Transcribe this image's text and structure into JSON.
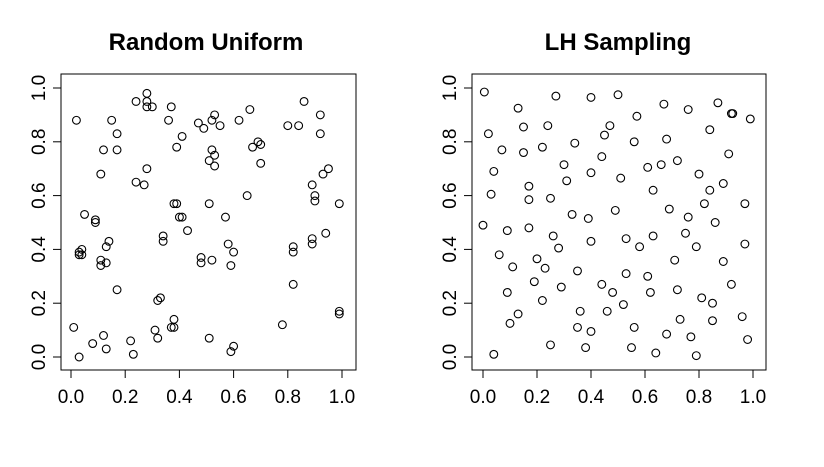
{
  "chart_data": [
    {
      "type": "scatter",
      "title": "Random Uniform",
      "xlabel": "",
      "ylabel": "",
      "xlim": [
        0,
        1
      ],
      "ylim": [
        0,
        1
      ],
      "xticks": [
        "0.0",
        "0.2",
        "0.4",
        "0.6",
        "0.8",
        "1.0"
      ],
      "yticks": [
        "0.0",
        "0.2",
        "0.4",
        "0.6",
        "0.8",
        "1.0"
      ],
      "grid": false,
      "marker": "open-circle",
      "points": [
        [
          0.02,
          0.88
        ],
        [
          0.12,
          0.77
        ],
        [
          0.15,
          0.88
        ],
        [
          0.17,
          0.83
        ],
        [
          0.17,
          0.77
        ],
        [
          0.24,
          0.95
        ],
        [
          0.28,
          0.98
        ],
        [
          0.28,
          0.95
        ],
        [
          0.28,
          0.93
        ],
        [
          0.3,
          0.93
        ],
        [
          0.37,
          0.93
        ],
        [
          0.36,
          0.88
        ],
        [
          0.39,
          0.78
        ],
        [
          0.41,
          0.82
        ],
        [
          0.47,
          0.87
        ],
        [
          0.49,
          0.85
        ],
        [
          0.52,
          0.88
        ],
        [
          0.53,
          0.9
        ],
        [
          0.55,
          0.86
        ],
        [
          0.62,
          0.88
        ],
        [
          0.66,
          0.92
        ],
        [
          0.67,
          0.78
        ],
        [
          0.69,
          0.8
        ],
        [
          0.7,
          0.79
        ],
        [
          0.7,
          0.72
        ],
        [
          0.8,
          0.86
        ],
        [
          0.86,
          0.95
        ],
        [
          0.84,
          0.86
        ],
        [
          0.92,
          0.9
        ],
        [
          0.92,
          0.83
        ],
        [
          0.51,
          0.73
        ],
        [
          0.52,
          0.77
        ],
        [
          0.53,
          0.75
        ],
        [
          0.53,
          0.71
        ],
        [
          0.28,
          0.7
        ],
        [
          0.24,
          0.65
        ],
        [
          0.27,
          0.64
        ],
        [
          0.65,
          0.6
        ],
        [
          0.89,
          0.64
        ],
        [
          0.9,
          0.6
        ],
        [
          0.9,
          0.58
        ],
        [
          0.93,
          0.68
        ],
        [
          0.95,
          0.7
        ],
        [
          0.99,
          0.57
        ],
        [
          0.11,
          0.68
        ],
        [
          0.05,
          0.53
        ],
        [
          0.09,
          0.51
        ],
        [
          0.09,
          0.5
        ],
        [
          0.38,
          0.57
        ],
        [
          0.39,
          0.57
        ],
        [
          0.4,
          0.52
        ],
        [
          0.41,
          0.52
        ],
        [
          0.43,
          0.47
        ],
        [
          0.51,
          0.57
        ],
        [
          0.57,
          0.52
        ],
        [
          0.03,
          0.39
        ],
        [
          0.04,
          0.4
        ],
        [
          0.03,
          0.38
        ],
        [
          0.04,
          0.38
        ],
        [
          0.13,
          0.41
        ],
        [
          0.14,
          0.43
        ],
        [
          0.11,
          0.36
        ],
        [
          0.13,
          0.35
        ],
        [
          0.11,
          0.34
        ],
        [
          0.34,
          0.45
        ],
        [
          0.34,
          0.43
        ],
        [
          0.48,
          0.37
        ],
        [
          0.48,
          0.35
        ],
        [
          0.52,
          0.36
        ],
        [
          0.58,
          0.42
        ],
        [
          0.59,
          0.34
        ],
        [
          0.6,
          0.39
        ],
        [
          0.82,
          0.41
        ],
        [
          0.82,
          0.39
        ],
        [
          0.89,
          0.44
        ],
        [
          0.89,
          0.42
        ],
        [
          0.94,
          0.46
        ],
        [
          0.17,
          0.25
        ],
        [
          0.33,
          0.22
        ],
        [
          0.32,
          0.21
        ],
        [
          0.82,
          0.27
        ],
        [
          0.01,
          0.11
        ],
        [
          0.03,
          0.0
        ],
        [
          0.08,
          0.05
        ],
        [
          0.12,
          0.08
        ],
        [
          0.13,
          0.03
        ],
        [
          0.22,
          0.06
        ],
        [
          0.23,
          0.01
        ],
        [
          0.31,
          0.1
        ],
        [
          0.32,
          0.07
        ],
        [
          0.37,
          0.11
        ],
        [
          0.38,
          0.11
        ],
        [
          0.38,
          0.14
        ],
        [
          0.51,
          0.07
        ],
        [
          0.59,
          0.02
        ],
        [
          0.6,
          0.04
        ],
        [
          0.78,
          0.12
        ],
        [
          0.99,
          0.17
        ],
        [
          0.99,
          0.16
        ]
      ]
    },
    {
      "type": "scatter",
      "title": "LH Sampling",
      "xlabel": "",
      "ylabel": "",
      "xlim": [
        0,
        1
      ],
      "ylim": [
        0,
        1
      ],
      "xticks": [
        "0.0",
        "0.2",
        "0.4",
        "0.6",
        "0.8",
        "1.0"
      ],
      "yticks": [
        "0.0",
        "0.2",
        "0.4",
        "0.6",
        "0.8",
        "1.0"
      ],
      "grid": false,
      "marker": "open-circle",
      "points": [
        [
          0.005,
          0.985
        ],
        [
          0.13,
          0.925
        ],
        [
          0.27,
          0.97
        ],
        [
          0.4,
          0.965
        ],
        [
          0.5,
          0.975
        ],
        [
          0.67,
          0.94
        ],
        [
          0.76,
          0.92
        ],
        [
          0.87,
          0.945
        ],
        [
          0.92,
          0.905
        ],
        [
          0.925,
          0.905
        ],
        [
          0.99,
          0.885
        ],
        [
          0.02,
          0.83
        ],
        [
          0.15,
          0.855
        ],
        [
          0.24,
          0.86
        ],
        [
          0.45,
          0.825
        ],
        [
          0.47,
          0.86
        ],
        [
          0.57,
          0.895
        ],
        [
          0.84,
          0.845
        ],
        [
          0.07,
          0.77
        ],
        [
          0.15,
          0.76
        ],
        [
          0.22,
          0.78
        ],
        [
          0.34,
          0.795
        ],
        [
          0.44,
          0.745
        ],
        [
          0.56,
          0.8
        ],
        [
          0.68,
          0.81
        ],
        [
          0.72,
          0.73
        ],
        [
          0.91,
          0.755
        ],
        [
          0.04,
          0.69
        ],
        [
          0.3,
          0.715
        ],
        [
          0.31,
          0.655
        ],
        [
          0.4,
          0.685
        ],
        [
          0.51,
          0.665
        ],
        [
          0.61,
          0.705
        ],
        [
          0.66,
          0.715
        ],
        [
          0.8,
          0.68
        ],
        [
          0.03,
          0.605
        ],
        [
          0.17,
          0.635
        ],
        [
          0.17,
          0.585
        ],
        [
          0.25,
          0.59
        ],
        [
          0.39,
          0.515
        ],
        [
          0.33,
          0.53
        ],
        [
          0.49,
          0.545
        ],
        [
          0.63,
          0.62
        ],
        [
          0.69,
          0.55
        ],
        [
          0.76,
          0.52
        ],
        [
          0.84,
          0.62
        ],
        [
          0.89,
          0.645
        ],
        [
          0.82,
          0.57
        ],
        [
          0.97,
          0.57
        ],
        [
          0.0,
          0.49
        ],
        [
          0.09,
          0.47
        ],
        [
          0.17,
          0.48
        ],
        [
          0.26,
          0.45
        ],
        [
          0.4,
          0.43
        ],
        [
          0.53,
          0.44
        ],
        [
          0.63,
          0.45
        ],
        [
          0.75,
          0.46
        ],
        [
          0.79,
          0.41
        ],
        [
          0.86,
          0.5
        ],
        [
          0.97,
          0.42
        ],
        [
          0.06,
          0.38
        ],
        [
          0.11,
          0.335
        ],
        [
          0.2,
          0.365
        ],
        [
          0.23,
          0.33
        ],
        [
          0.28,
          0.405
        ],
        [
          0.35,
          0.32
        ],
        [
          0.44,
          0.27
        ],
        [
          0.53,
          0.31
        ],
        [
          0.58,
          0.41
        ],
        [
          0.61,
          0.3
        ],
        [
          0.71,
          0.36
        ],
        [
          0.89,
          0.355
        ],
        [
          0.92,
          0.27
        ],
        [
          0.09,
          0.24
        ],
        [
          0.19,
          0.28
        ],
        [
          0.22,
          0.21
        ],
        [
          0.29,
          0.26
        ],
        [
          0.36,
          0.17
        ],
        [
          0.48,
          0.24
        ],
        [
          0.52,
          0.195
        ],
        [
          0.62,
          0.24
        ],
        [
          0.72,
          0.25
        ],
        [
          0.81,
          0.22
        ],
        [
          0.85,
          0.2
        ],
        [
          0.1,
          0.125
        ],
        [
          0.13,
          0.16
        ],
        [
          0.35,
          0.11
        ],
        [
          0.38,
          0.035
        ],
        [
          0.4,
          0.095
        ],
        [
          0.46,
          0.17
        ],
        [
          0.55,
          0.035
        ],
        [
          0.56,
          0.11
        ],
        [
          0.64,
          0.015
        ],
        [
          0.68,
          0.085
        ],
        [
          0.73,
          0.14
        ],
        [
          0.77,
          0.075
        ],
        [
          0.85,
          0.135
        ],
        [
          0.96,
          0.15
        ],
        [
          0.98,
          0.065
        ],
        [
          0.04,
          0.01
        ],
        [
          0.25,
          0.045
        ],
        [
          0.79,
          0.005
        ]
      ]
    }
  ]
}
